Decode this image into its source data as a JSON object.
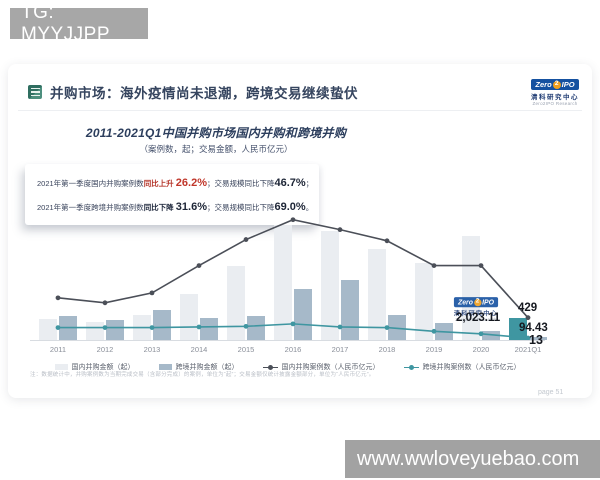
{
  "watermarks": {
    "top_left": "TG: MYYJJPP",
    "bottom_right": "www.wwloveyuebao.com"
  },
  "header": {
    "title": "并购市场：海外疫情尚未退潮，跨境交易继续蛰伏"
  },
  "brand": {
    "zero": "Zero",
    "two": "2",
    "ipo": "IPO",
    "cn": "清科研究中心",
    "en": "Zero2IPO Research"
  },
  "stats": {
    "line1": {
      "prefix": "2021年第一季度国内并购案例数",
      "emph": "同比上升 ",
      "value": "26.2%",
      "middle": "；交易规模同比下降",
      "value2": "46.7%",
      "tail": "；"
    },
    "line2": {
      "prefix": "2021年第一季度跨境并购案例数",
      "emph": "同比下降 ",
      "value": "31.6%",
      "middle": "；交易规模同比下降",
      "value2": "69.0%",
      "tail": "。"
    }
  },
  "chart_data": {
    "type": "combo-bar-line",
    "title": "2011-2021Q1中国并购市场国内并购和跨境并购",
    "subtitle": "（案例数，起；交易金额，人民币亿元）",
    "categories": [
      "2011",
      "2012",
      "2013",
      "2014",
      "2015",
      "2016",
      "2017",
      "2018",
      "2019",
      "2020",
      "2021Q1"
    ],
    "axes": {
      "y_axis_visible": false,
      "grid": false,
      "note": "图中无数值轴刻度；序列数值为按绘图区高度估读的相对百分比"
    },
    "series": [
      {
        "name": "国内并购金额（起）",
        "type": "bar",
        "color": "#eaedf1",
        "values_pct_of_plot": [
          17,
          14.5,
          20,
          37,
          60,
          93,
          88,
          73,
          62,
          84,
          18
        ]
      },
      {
        "name": "跨境并购金额（起）",
        "type": "bar",
        "color": "#a6b9c9",
        "values_pct_of_plot": [
          19,
          16,
          24,
          18,
          19,
          41,
          48,
          20,
          14,
          7,
          2.5
        ]
      },
      {
        "name": "国内并购案例数（人民币亿元）",
        "type": "line",
        "color": "#4b4f58",
        "values_pct_of_plot": [
          34,
          30,
          38,
          60,
          81,
          97,
          89,
          80,
          60,
          60,
          18
        ]
      },
      {
        "name": "跨境并购案例数（人民币亿元）",
        "type": "line",
        "color": "#3f96a1",
        "values_pct_of_plot": [
          10,
          10,
          10,
          10.5,
          11,
          13,
          10.5,
          10,
          7,
          5,
          1.6
        ]
      }
    ],
    "highlight": {
      "category": "2021Q1",
      "domestic_bar_color": "#3f96a1"
    },
    "end_labels": {
      "domestic_cases": "429",
      "domestic_amount": "2,023.11",
      "crossborder_amount": "94.43",
      "crossborder_cases": "13"
    },
    "legend_position": "bottom"
  },
  "footnote": "注：数据统计中，并购案例数为当期完成交易（含部分完成）的案例，单位为“起”；交易金额仅统计披露金额部分，单位为“人民币亿元”。",
  "page_label": "page 51"
}
